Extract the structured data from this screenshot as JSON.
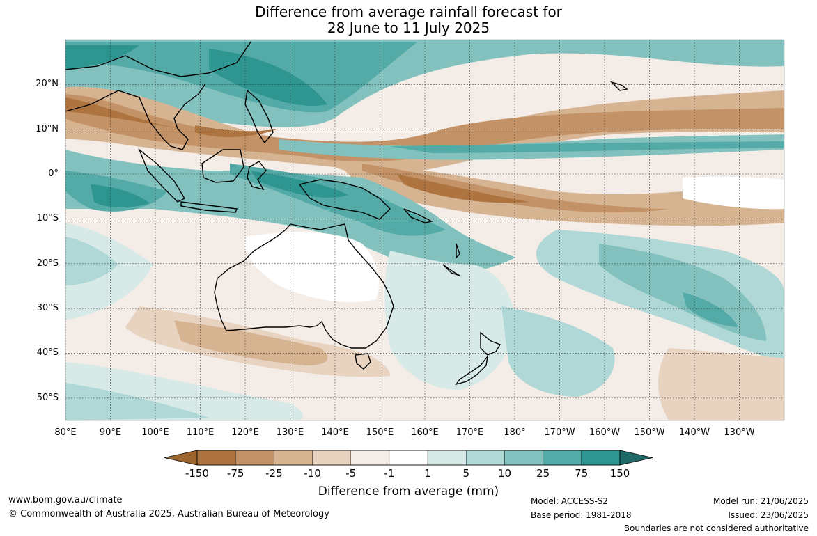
{
  "title": {
    "line1": "Difference from average rainfall forecast for",
    "line2": "28 June to 11 July 2025"
  },
  "map": {
    "lat_labels": [
      "20°N",
      "10°N",
      "0°",
      "10°S",
      "20°S",
      "30°S",
      "40°S",
      "50°S"
    ],
    "lat_values": [
      20,
      10,
      0,
      -10,
      -20,
      -30,
      -40,
      -50
    ],
    "lon_labels": [
      "80°E",
      "90°E",
      "100°E",
      "110°E",
      "120°E",
      "130°E",
      "140°E",
      "150°E",
      "160°E",
      "170°E",
      "180°",
      "170°W",
      "160°W",
      "150°W",
      "140°W",
      "130°W"
    ],
    "lon_values": [
      80,
      90,
      100,
      110,
      120,
      130,
      140,
      150,
      160,
      170,
      180,
      190,
      200,
      210,
      220,
      230
    ],
    "extent": {
      "lon_min": 80,
      "lon_max": 240,
      "lat_min": -55,
      "lat_max": 30
    }
  },
  "colorbar": {
    "labels": [
      "-150",
      "-75",
      "-25",
      "-10",
      "-5",
      "-1",
      "1",
      "5",
      "10",
      "25",
      "75",
      "150"
    ],
    "colors": [
      "#9c6530",
      "#ad7440",
      "#c39266",
      "#d6b492",
      "#e7d3c0",
      "#f4ece6",
      "#ffffff",
      "#d7eae8",
      "#b0d8d6",
      "#82c1be",
      "#54aaa7",
      "#2f9591",
      "#1f6a68"
    ],
    "title": "Difference from average (mm)"
  },
  "footer": {
    "website": "www.bom.gov.au/climate",
    "copyright": "© Commonwealth of Australia 2025, Australian Bureau of Meteorology",
    "model": "Model: ACCESS-S2",
    "base_period": "Base period: 1981-2018",
    "model_run": "Model run: 21/06/2025",
    "issued": "Issued: 23/06/2025",
    "disclaimer": "Boundaries are not considered authoritative"
  }
}
